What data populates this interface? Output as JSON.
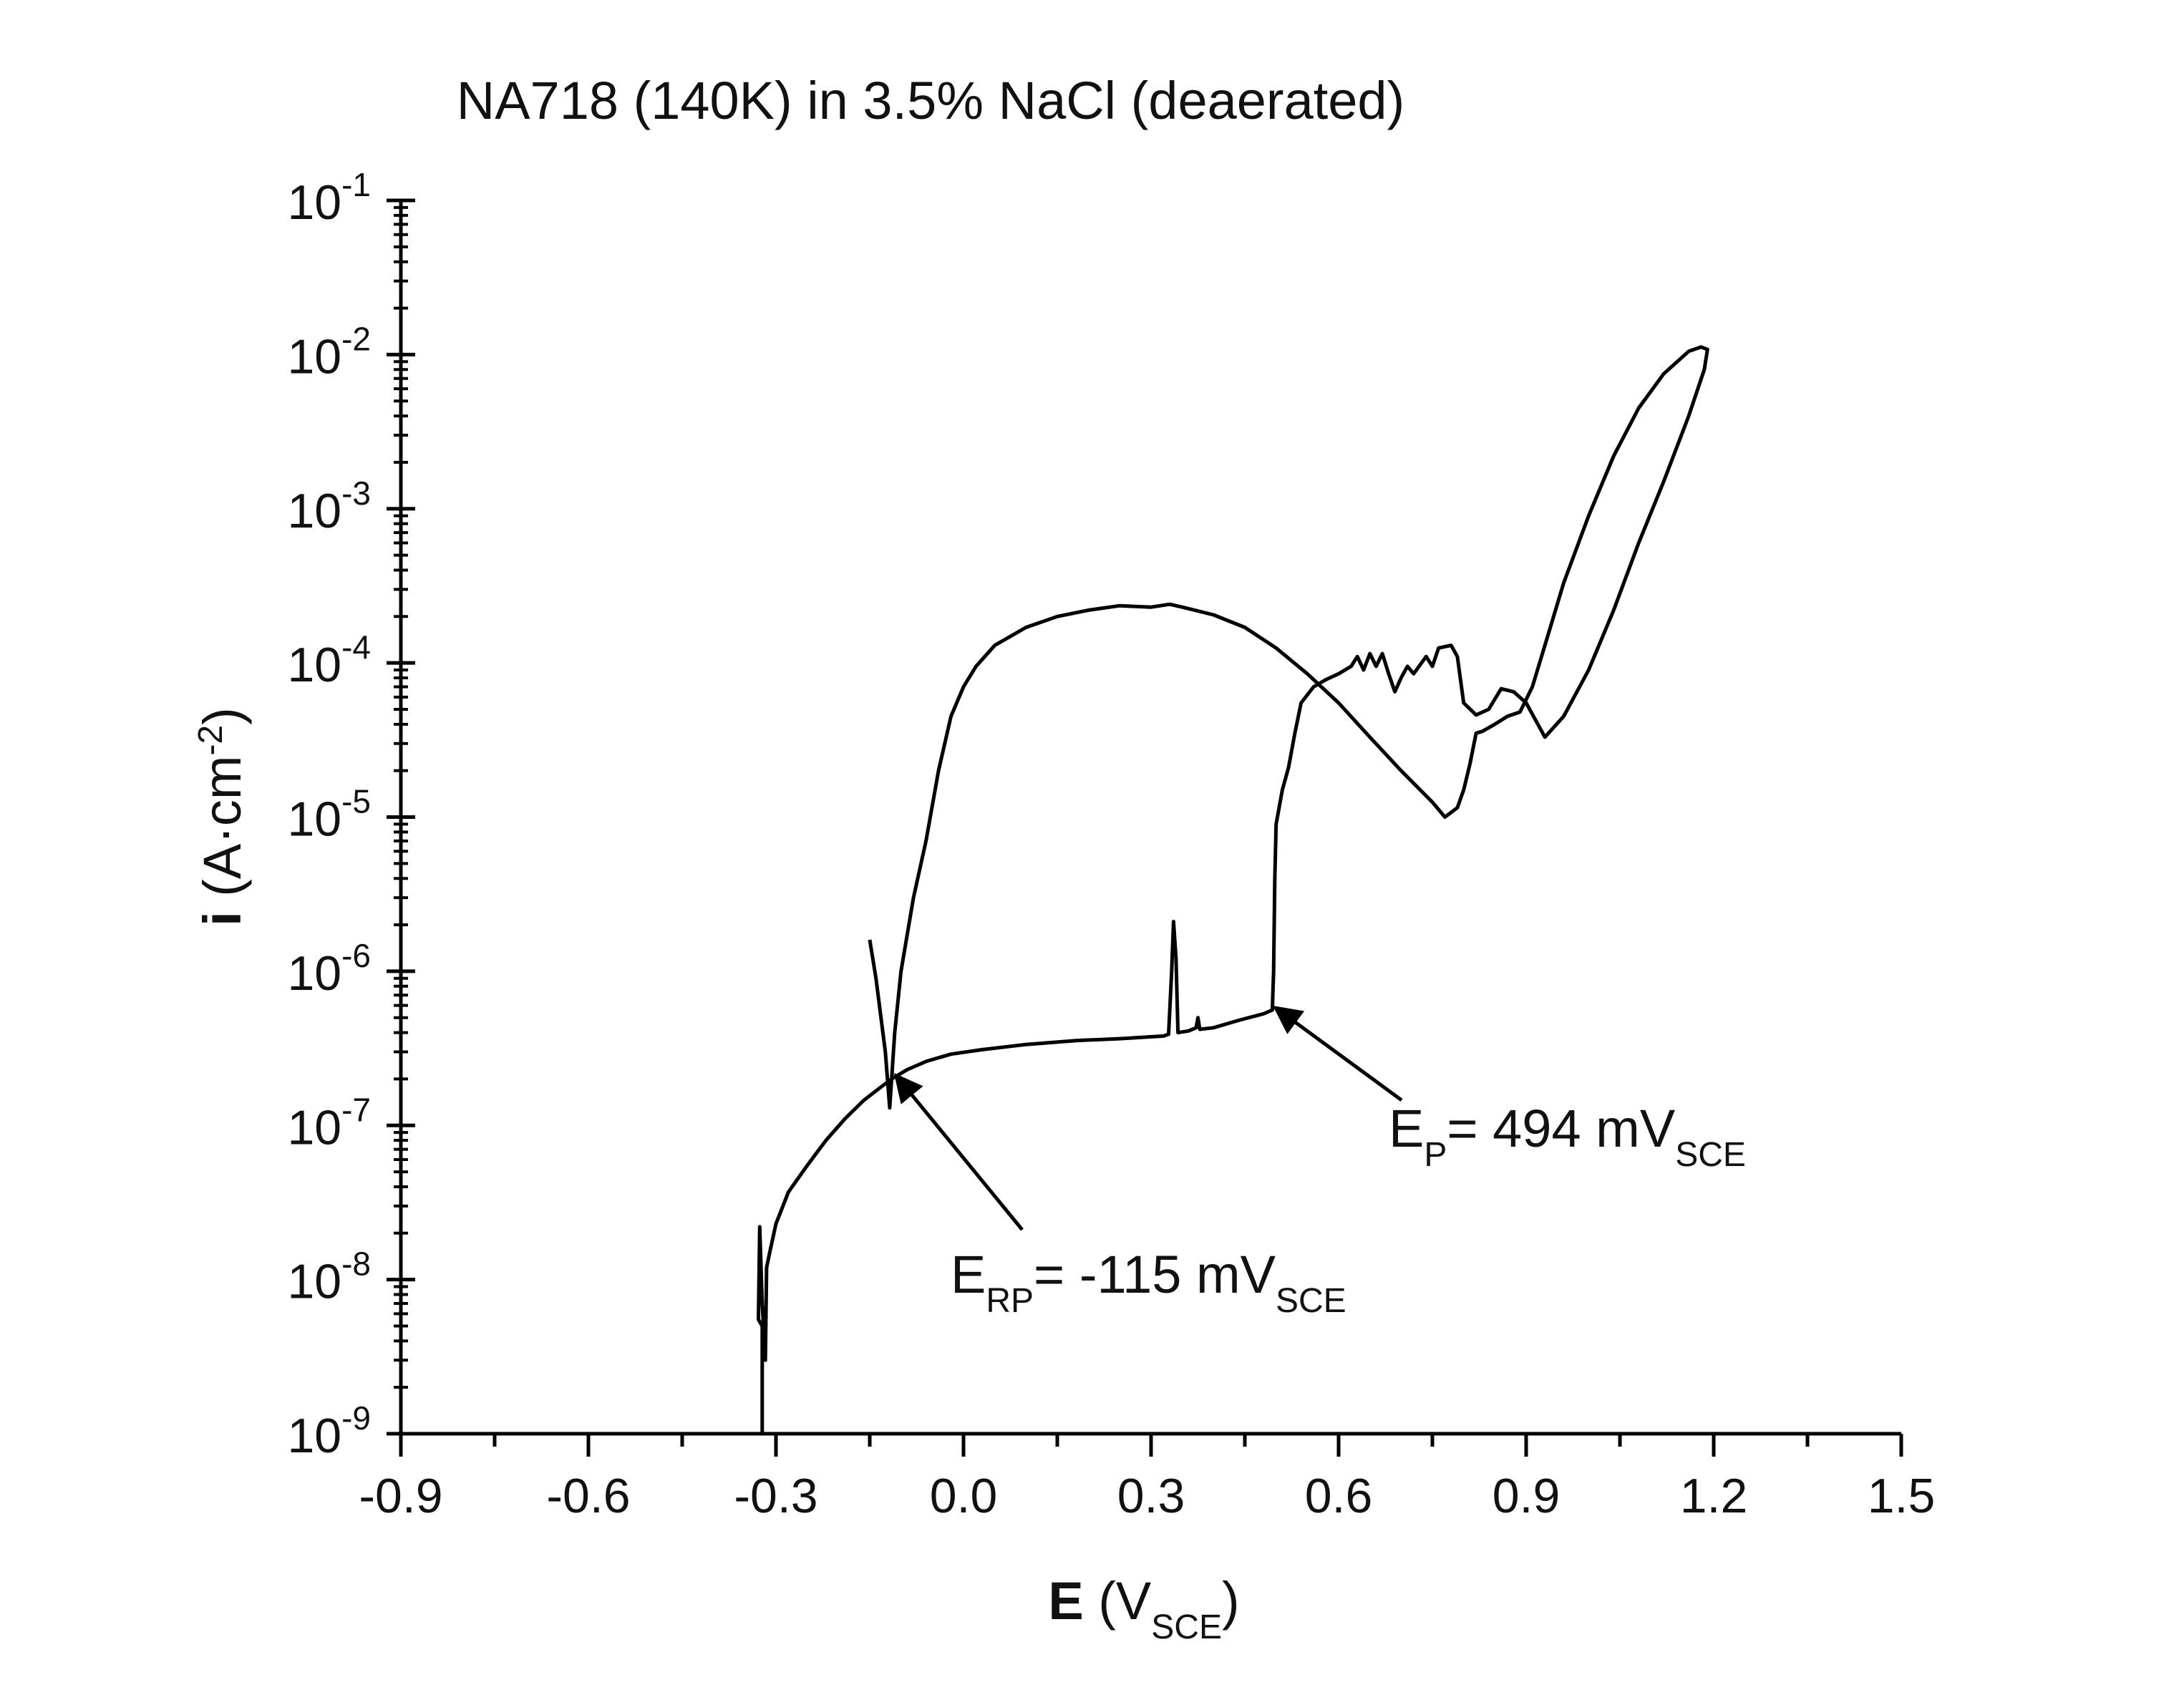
{
  "chart_data": {
    "type": "line",
    "title": "NA718 (140K) in 3.5% NaCl (deaerated)",
    "xlabel": {
      "bold": "E",
      "text": " (V",
      "sub": "SCE",
      "close": ")"
    },
    "ylabel": {
      "bold": "i",
      "text": " (A·cm",
      "sup": "-2",
      "close": ")"
    },
    "xscale": "linear",
    "yscale": "log",
    "xlim": [
      -0.9,
      1.5
    ],
    "ylim": [
      1e-09,
      0.1
    ],
    "x_ticks": [
      -0.9,
      -0.6,
      -0.3,
      0.0,
      0.3,
      0.6,
      0.9,
      1.2,
      1.5
    ],
    "x_tick_labels": [
      "-0.9",
      "-0.6",
      "-0.3",
      "0.0",
      "0.3",
      "0.6",
      "0.9",
      "1.2",
      "1.5"
    ],
    "y_tick_exponents": [
      "-9",
      "-8",
      "-7",
      "-6",
      "-5",
      "-4",
      "-3",
      "-2",
      "-1"
    ],
    "grid": false,
    "series": [
      {
        "points": [
          [
            -0.322,
            1e-09
          ],
          [
            -0.322,
            5e-09
          ],
          [
            -0.328,
            5.5e-09
          ],
          [
            -0.326,
            2.2e-08
          ],
          [
            -0.322,
            7e-09
          ],
          [
            -0.317,
            3e-09
          ],
          [
            -0.315,
            1.2e-08
          ],
          [
            -0.31,
            1.5e-08
          ],
          [
            -0.3,
            2.3e-08
          ],
          [
            -0.28,
            3.7e-08
          ],
          [
            -0.25,
            5.5e-08
          ],
          [
            -0.22,
            8e-08
          ],
          [
            -0.19,
            1.1e-07
          ],
          [
            -0.16,
            1.45e-07
          ],
          [
            -0.13,
            1.8e-07
          ],
          [
            -0.115,
            2e-07
          ],
          [
            -0.09,
            2.3e-07
          ],
          [
            -0.06,
            2.6e-07
          ],
          [
            -0.02,
            2.9e-07
          ],
          [
            0.03,
            3.1e-07
          ],
          [
            0.1,
            3.35e-07
          ],
          [
            0.18,
            3.55e-07
          ],
          [
            0.25,
            3.65e-07
          ],
          [
            0.32,
            3.8e-07
          ],
          [
            0.328,
            3.9e-07
          ],
          [
            0.333,
            1e-06
          ],
          [
            0.336,
            2.1e-06
          ],
          [
            0.34,
            1.2e-06
          ],
          [
            0.343,
            4e-07
          ],
          [
            0.36,
            4.1e-07
          ],
          [
            0.372,
            4.3e-07
          ],
          [
            0.375,
            5e-07
          ],
          [
            0.378,
            4.2e-07
          ],
          [
            0.4,
            4.3e-07
          ],
          [
            0.44,
            4.8e-07
          ],
          [
            0.48,
            5.3e-07
          ],
          [
            0.494,
            5.6e-07
          ],
          [
            0.496,
            1e-06
          ],
          [
            0.498,
            4e-06
          ],
          [
            0.5,
            9e-06
          ],
          [
            0.51,
            1.5e-05
          ],
          [
            0.52,
            2.1e-05
          ],
          [
            0.53,
            3.5e-05
          ],
          [
            0.54,
            5.5e-05
          ],
          [
            0.56,
            7e-05
          ],
          [
            0.58,
            7.8e-05
          ],
          [
            0.6,
            8.5e-05
          ],
          [
            0.62,
            9.5e-05
          ],
          [
            0.63,
            0.00011
          ],
          [
            0.64,
            9e-05
          ],
          [
            0.65,
            0.000115
          ],
          [
            0.66,
            9.5e-05
          ],
          [
            0.67,
            0.000115
          ],
          [
            0.68,
            8.5e-05
          ],
          [
            0.69,
            6.5e-05
          ],
          [
            0.7,
            8e-05
          ],
          [
            0.71,
            9.5e-05
          ],
          [
            0.72,
            8.5e-05
          ],
          [
            0.74,
            0.00011
          ],
          [
            0.75,
            9.5e-05
          ],
          [
            0.76,
            0.000125
          ],
          [
            0.78,
            0.00013
          ],
          [
            0.79,
            0.00011
          ],
          [
            0.8,
            5.5e-05
          ],
          [
            0.82,
            4.6e-05
          ],
          [
            0.84,
            5e-05
          ],
          [
            0.86,
            6.8e-05
          ],
          [
            0.88,
            6.5e-05
          ],
          [
            0.9,
            5.5e-05
          ],
          [
            0.93,
            3.3e-05
          ],
          [
            0.96,
            4.5e-05
          ],
          [
            1.0,
            9e-05
          ],
          [
            1.04,
            0.00022
          ],
          [
            1.08,
            0.0006
          ],
          [
            1.12,
            0.0015
          ],
          [
            1.16,
            0.004
          ],
          [
            1.185,
            0.008
          ],
          [
            1.19,
            0.0108
          ],
          [
            1.18,
            0.0112
          ],
          [
            1.16,
            0.0105
          ],
          [
            1.12,
            0.0075
          ],
          [
            1.08,
            0.0045
          ],
          [
            1.04,
            0.0022
          ],
          [
            1.0,
            0.0009
          ],
          [
            0.96,
            0.00033
          ],
          [
            0.93,
            0.00013
          ],
          [
            0.91,
            7e-05
          ],
          [
            0.89,
            4.8e-05
          ],
          [
            0.87,
            4.5e-05
          ],
          [
            0.85,
            4e-05
          ],
          [
            0.83,
            3.6e-05
          ],
          [
            0.82,
            3.5e-05
          ],
          [
            0.81,
            2.2e-05
          ],
          [
            0.8,
            1.5e-05
          ],
          [
            0.79,
            1.15e-05
          ],
          [
            0.77,
            1e-05
          ],
          [
            0.75,
            1.25e-05
          ],
          [
            0.7,
            2e-05
          ],
          [
            0.65,
            3.3e-05
          ],
          [
            0.6,
            5.5e-05
          ],
          [
            0.55,
            8.5e-05
          ],
          [
            0.5,
            0.000125
          ],
          [
            0.45,
            0.00017
          ],
          [
            0.4,
            0.000205
          ],
          [
            0.35,
            0.00023
          ],
          [
            0.33,
            0.00024
          ],
          [
            0.3,
            0.00023
          ],
          [
            0.25,
            0.000235
          ],
          [
            0.2,
            0.00022
          ],
          [
            0.15,
            0.0002
          ],
          [
            0.1,
            0.00017
          ],
          [
            0.05,
            0.00013
          ],
          [
            0.02,
            9.5e-05
          ],
          [
            0.0,
            7e-05
          ],
          [
            -0.02,
            4.5e-05
          ],
          [
            -0.04,
            2e-05
          ],
          [
            -0.06,
            7e-06
          ],
          [
            -0.08,
            3e-06
          ],
          [
            -0.1,
            1e-06
          ],
          [
            -0.11,
            4e-07
          ],
          [
            -0.118,
            1.3e-07
          ],
          [
            -0.125,
            3e-07
          ],
          [
            -0.14,
            9e-07
          ],
          [
            -0.15,
            1.6e-06
          ]
        ]
      }
    ],
    "annotations": [
      {
        "text": "E",
        "sub": "RP",
        "value": "= -115 mV",
        "sub2": "SCE",
        "target": [
          -0.115,
          2e-07
        ]
      },
      {
        "text": "E",
        "sub": "P",
        "value": "= 494 mV",
        "sub2": "SCE",
        "target": [
          0.494,
          5.6e-07
        ]
      }
    ]
  }
}
